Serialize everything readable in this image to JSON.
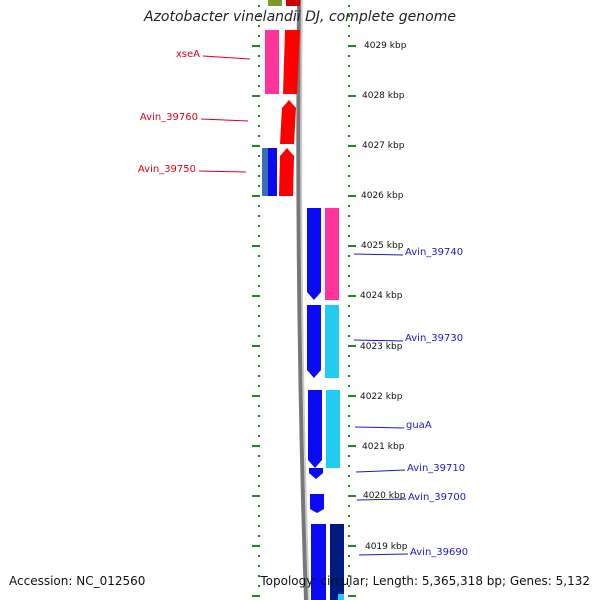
{
  "title": "Azotobacter vinelandii DJ, complete genome",
  "footer": {
    "accession": "Accession: NC_012560",
    "summary": "Topology: circular; Length: 5,365,318 bp; Genes: 5,132"
  },
  "colors": {
    "forward_red": "#ff0000",
    "magenta": "#ff3399",
    "blue": "#0a0af5",
    "cyan": "#22ccf0",
    "navy": "#001a80",
    "tick_green": "#1a8a1a",
    "backbone": "#888888",
    "left_label": "#e0001a",
    "right_label": "#1a1acc"
  },
  "scale_labels": [
    "4029 kbp",
    "4028 kbp",
    "4027 kbp",
    "4026 kbp",
    "4025 kbp",
    "4024 kbp",
    "4023 kbp",
    "4022 kbp",
    "4021 kbp",
    "4020 kbp",
    "4019 kbp"
  ],
  "left_genes": [
    {
      "label": "xseA"
    },
    {
      "label": "Avin_39760"
    },
    {
      "label": "Avin_39750"
    }
  ],
  "right_genes": [
    {
      "label": "Avin_39740"
    },
    {
      "label": "Avin_39730"
    },
    {
      "label": "guaA"
    },
    {
      "label": "Avin_39710"
    },
    {
      "label": "Avin_39700"
    },
    {
      "label": "Avin_39690"
    }
  ]
}
